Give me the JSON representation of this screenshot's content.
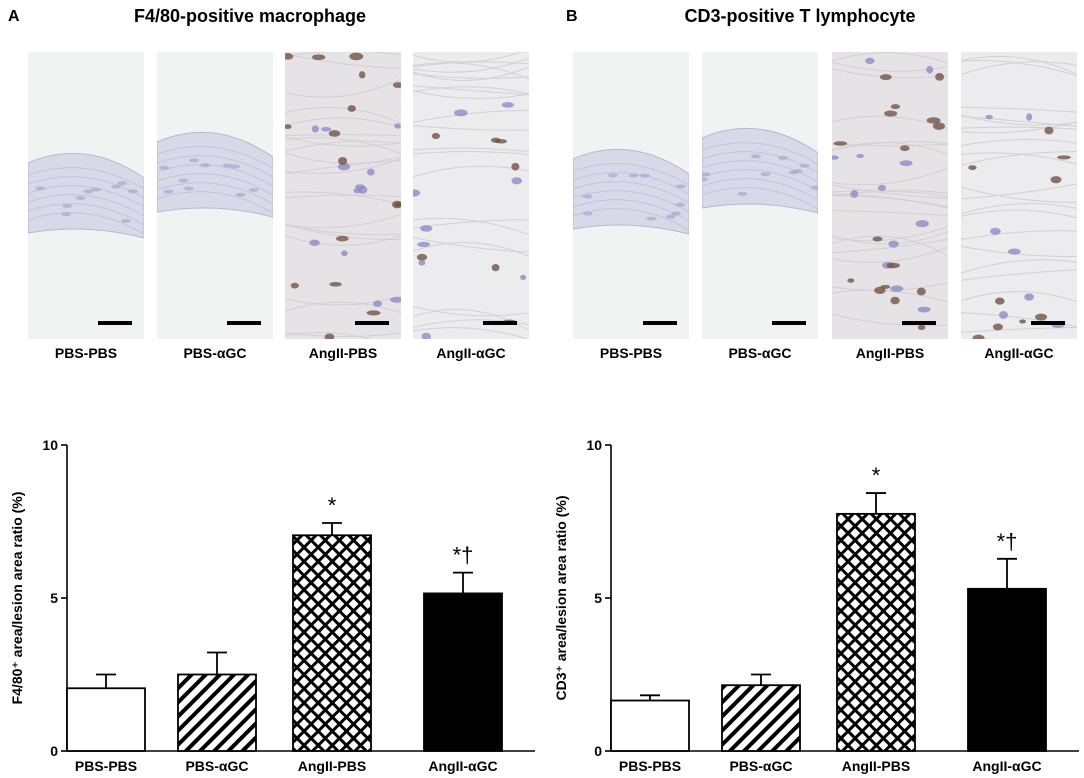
{
  "panels": [
    {
      "letter": "A",
      "title": "F4/80-positive macrophage",
      "micrographs": [
        {
          "label": "PBS-PBS",
          "stain": "light"
        },
        {
          "label": "PBS-αGC",
          "stain": "light"
        },
        {
          "label": "AngII-PBS",
          "stain": "heavy"
        },
        {
          "label": "AngII-αGC",
          "stain": "medium"
        }
      ]
    },
    {
      "letter": "B",
      "title": "CD3-positive T lymphocyte",
      "micrographs": [
        {
          "label": "PBS-PBS",
          "stain": "light"
        },
        {
          "label": "PBS-αGC",
          "stain": "light"
        },
        {
          "label": "AngII-PBS",
          "stain": "heavy"
        },
        {
          "label": "AngII-αGC",
          "stain": "medium"
        }
      ]
    }
  ],
  "chart_data": [
    {
      "type": "bar",
      "ylabel": "F4/80⁺ area/lesion area ratio (%)",
      "categories": [
        "PBS-PBS",
        "PBS-αGC",
        "AngII-PBS",
        "AngII-αGC"
      ],
      "values": [
        2.05,
        2.5,
        7.05,
        5.15
      ],
      "errors": [
        0.45,
        0.72,
        0.4,
        0.68
      ],
      "fills": [
        "white",
        "diagonal-hatch",
        "crosshatch",
        "black"
      ],
      "annotations": [
        "",
        "",
        "*",
        "*†"
      ],
      "ylim": [
        0,
        10
      ],
      "yticks": [
        "0",
        "5",
        "10"
      ]
    },
    {
      "type": "bar",
      "ylabel": "CD3⁺ area/lesion area ratio (%)",
      "categories": [
        "PBS-PBS",
        "PBS-αGC",
        "AngII-PBS",
        "AngII-αGC"
      ],
      "values": [
        1.65,
        2.15,
        7.75,
        5.3
      ],
      "errors": [
        0.17,
        0.35,
        0.68,
        0.98
      ],
      "fills": [
        "white",
        "diagonal-hatch",
        "crosshatch",
        "black"
      ],
      "annotations": [
        "",
        "",
        "*",
        "*†"
      ],
      "ylim": [
        0,
        10
      ],
      "yticks": [
        "0",
        "5",
        "10"
      ]
    }
  ]
}
